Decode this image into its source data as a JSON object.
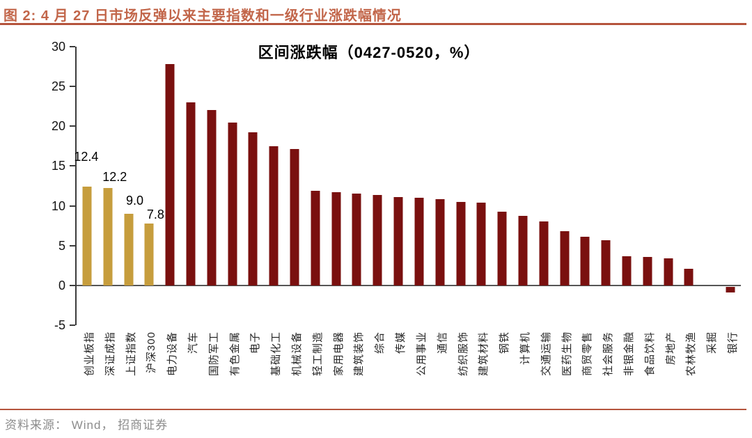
{
  "page": {
    "figure_label": "图 2: 4 月 27 日市场反弹以来主要指数和一级行业涨跌幅情况",
    "source_note": "资料来源： Wind， 招商证券"
  },
  "chart_data": {
    "type": "bar",
    "title": "区间涨跌幅（0427-0520，%）",
    "xlabel": "",
    "ylabel": "",
    "ylim": [
      -5,
      30
    ],
    "yticks": [
      30,
      25,
      20,
      15,
      10,
      5,
      0,
      -5
    ],
    "grid": false,
    "legend": "none",
    "colors": {
      "index_bar": "#C69D3D",
      "industry_bar": "#7A100F"
    },
    "categories": [
      "创业板指",
      "深证成指",
      "上证指数",
      "沪深300",
      "电力设备",
      "汽车",
      "国防军工",
      "有色金属",
      "电子",
      "基础化工",
      "机械设备",
      "轻工制造",
      "家用电器",
      "建筑装饰",
      "综合",
      "传媒",
      "公用事业",
      "通信",
      "纺织服饰",
      "建筑材料",
      "钢铁",
      "计算机",
      "交通运输",
      "医药生物",
      "商贸零售",
      "社会服务",
      "非银金融",
      "食品饮料",
      "房地产",
      "农林牧渔",
      "采掘",
      "银行"
    ],
    "values": [
      12.4,
      12.2,
      9.0,
      7.8,
      27.8,
      23.0,
      22.0,
      20.5,
      19.2,
      17.5,
      17.1,
      11.9,
      11.7,
      11.5,
      11.4,
      11.1,
      11.0,
      10.8,
      10.5,
      10.4,
      9.3,
      8.7,
      8.0,
      6.8,
      6.1,
      5.7,
      3.7,
      3.6,
      3.4,
      2.1,
      0.0,
      -0.7
    ],
    "groups": [
      "index",
      "index",
      "index",
      "index",
      "industry",
      "industry",
      "industry",
      "industry",
      "industry",
      "industry",
      "industry",
      "industry",
      "industry",
      "industry",
      "industry",
      "industry",
      "industry",
      "industry",
      "industry",
      "industry",
      "industry",
      "industry",
      "industry",
      "industry",
      "industry",
      "industry",
      "industry",
      "industry",
      "industry",
      "industry",
      "industry",
      "industry"
    ],
    "data_labels": [
      "12.4",
      "12.2",
      "9.0",
      "7.8"
    ]
  }
}
